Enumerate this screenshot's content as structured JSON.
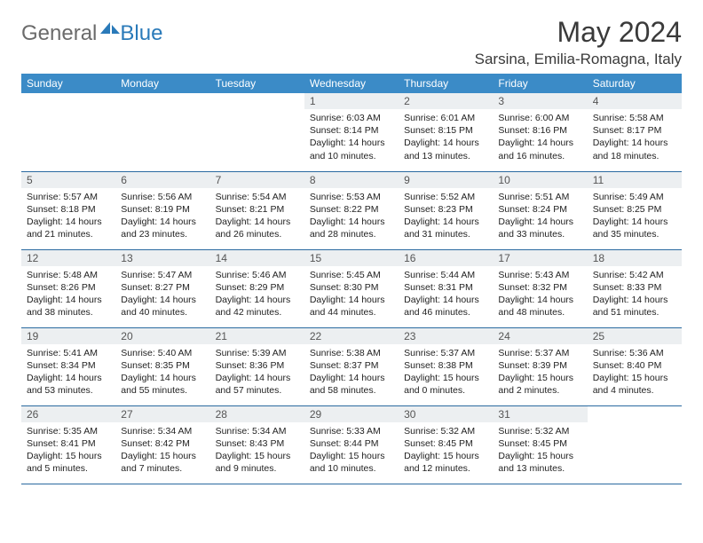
{
  "brand": {
    "general": "General",
    "blue": "Blue"
  },
  "title": "May 2024",
  "location": "Sarsina, Emilia-Romagna, Italy",
  "colors": {
    "header_bg": "#3b8bc7",
    "header_text": "#ffffff",
    "daynum_bg": "#eceff1",
    "row_border": "#2a6aa0",
    "brand_gray": "#6b6b6b",
    "brand_blue": "#2a7ab9"
  },
  "day_names": [
    "Sunday",
    "Monday",
    "Tuesday",
    "Wednesday",
    "Thursday",
    "Friday",
    "Saturday"
  ],
  "weeks": [
    [
      {
        "n": "",
        "empty": true
      },
      {
        "n": "",
        "empty": true
      },
      {
        "n": "",
        "empty": true
      },
      {
        "n": "1",
        "sr": "Sunrise: 6:03 AM",
        "ss": "Sunset: 8:14 PM",
        "dl": "Daylight: 14 hours and 10 minutes."
      },
      {
        "n": "2",
        "sr": "Sunrise: 6:01 AM",
        "ss": "Sunset: 8:15 PM",
        "dl": "Daylight: 14 hours and 13 minutes."
      },
      {
        "n": "3",
        "sr": "Sunrise: 6:00 AM",
        "ss": "Sunset: 8:16 PM",
        "dl": "Daylight: 14 hours and 16 minutes."
      },
      {
        "n": "4",
        "sr": "Sunrise: 5:58 AM",
        "ss": "Sunset: 8:17 PM",
        "dl": "Daylight: 14 hours and 18 minutes."
      }
    ],
    [
      {
        "n": "5",
        "sr": "Sunrise: 5:57 AM",
        "ss": "Sunset: 8:18 PM",
        "dl": "Daylight: 14 hours and 21 minutes."
      },
      {
        "n": "6",
        "sr": "Sunrise: 5:56 AM",
        "ss": "Sunset: 8:19 PM",
        "dl": "Daylight: 14 hours and 23 minutes."
      },
      {
        "n": "7",
        "sr": "Sunrise: 5:54 AM",
        "ss": "Sunset: 8:21 PM",
        "dl": "Daylight: 14 hours and 26 minutes."
      },
      {
        "n": "8",
        "sr": "Sunrise: 5:53 AM",
        "ss": "Sunset: 8:22 PM",
        "dl": "Daylight: 14 hours and 28 minutes."
      },
      {
        "n": "9",
        "sr": "Sunrise: 5:52 AM",
        "ss": "Sunset: 8:23 PM",
        "dl": "Daylight: 14 hours and 31 minutes."
      },
      {
        "n": "10",
        "sr": "Sunrise: 5:51 AM",
        "ss": "Sunset: 8:24 PM",
        "dl": "Daylight: 14 hours and 33 minutes."
      },
      {
        "n": "11",
        "sr": "Sunrise: 5:49 AM",
        "ss": "Sunset: 8:25 PM",
        "dl": "Daylight: 14 hours and 35 minutes."
      }
    ],
    [
      {
        "n": "12",
        "sr": "Sunrise: 5:48 AM",
        "ss": "Sunset: 8:26 PM",
        "dl": "Daylight: 14 hours and 38 minutes."
      },
      {
        "n": "13",
        "sr": "Sunrise: 5:47 AM",
        "ss": "Sunset: 8:27 PM",
        "dl": "Daylight: 14 hours and 40 minutes."
      },
      {
        "n": "14",
        "sr": "Sunrise: 5:46 AM",
        "ss": "Sunset: 8:29 PM",
        "dl": "Daylight: 14 hours and 42 minutes."
      },
      {
        "n": "15",
        "sr": "Sunrise: 5:45 AM",
        "ss": "Sunset: 8:30 PM",
        "dl": "Daylight: 14 hours and 44 minutes."
      },
      {
        "n": "16",
        "sr": "Sunrise: 5:44 AM",
        "ss": "Sunset: 8:31 PM",
        "dl": "Daylight: 14 hours and 46 minutes."
      },
      {
        "n": "17",
        "sr": "Sunrise: 5:43 AM",
        "ss": "Sunset: 8:32 PM",
        "dl": "Daylight: 14 hours and 48 minutes."
      },
      {
        "n": "18",
        "sr": "Sunrise: 5:42 AM",
        "ss": "Sunset: 8:33 PM",
        "dl": "Daylight: 14 hours and 51 minutes."
      }
    ],
    [
      {
        "n": "19",
        "sr": "Sunrise: 5:41 AM",
        "ss": "Sunset: 8:34 PM",
        "dl": "Daylight: 14 hours and 53 minutes."
      },
      {
        "n": "20",
        "sr": "Sunrise: 5:40 AM",
        "ss": "Sunset: 8:35 PM",
        "dl": "Daylight: 14 hours and 55 minutes."
      },
      {
        "n": "21",
        "sr": "Sunrise: 5:39 AM",
        "ss": "Sunset: 8:36 PM",
        "dl": "Daylight: 14 hours and 57 minutes."
      },
      {
        "n": "22",
        "sr": "Sunrise: 5:38 AM",
        "ss": "Sunset: 8:37 PM",
        "dl": "Daylight: 14 hours and 58 minutes."
      },
      {
        "n": "23",
        "sr": "Sunrise: 5:37 AM",
        "ss": "Sunset: 8:38 PM",
        "dl": "Daylight: 15 hours and 0 minutes."
      },
      {
        "n": "24",
        "sr": "Sunrise: 5:37 AM",
        "ss": "Sunset: 8:39 PM",
        "dl": "Daylight: 15 hours and 2 minutes."
      },
      {
        "n": "25",
        "sr": "Sunrise: 5:36 AM",
        "ss": "Sunset: 8:40 PM",
        "dl": "Daylight: 15 hours and 4 minutes."
      }
    ],
    [
      {
        "n": "26",
        "sr": "Sunrise: 5:35 AM",
        "ss": "Sunset: 8:41 PM",
        "dl": "Daylight: 15 hours and 5 minutes."
      },
      {
        "n": "27",
        "sr": "Sunrise: 5:34 AM",
        "ss": "Sunset: 8:42 PM",
        "dl": "Daylight: 15 hours and 7 minutes."
      },
      {
        "n": "28",
        "sr": "Sunrise: 5:34 AM",
        "ss": "Sunset: 8:43 PM",
        "dl": "Daylight: 15 hours and 9 minutes."
      },
      {
        "n": "29",
        "sr": "Sunrise: 5:33 AM",
        "ss": "Sunset: 8:44 PM",
        "dl": "Daylight: 15 hours and 10 minutes."
      },
      {
        "n": "30",
        "sr": "Sunrise: 5:32 AM",
        "ss": "Sunset: 8:45 PM",
        "dl": "Daylight: 15 hours and 12 minutes."
      },
      {
        "n": "31",
        "sr": "Sunrise: 5:32 AM",
        "ss": "Sunset: 8:45 PM",
        "dl": "Daylight: 15 hours and 13 minutes."
      },
      {
        "n": "",
        "empty": true
      }
    ]
  ]
}
